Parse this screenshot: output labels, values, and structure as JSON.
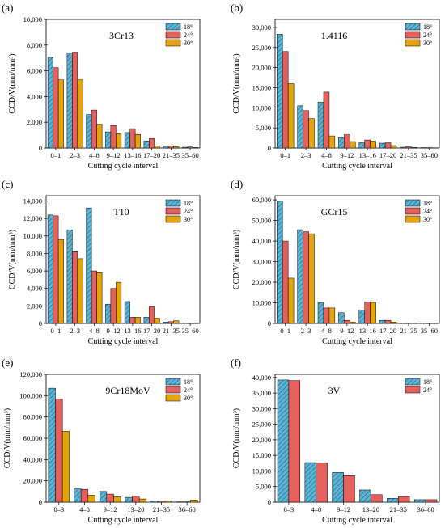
{
  "figure": {
    "colors": {
      "series_0": "#5BB4D5",
      "series_1": "#E5615D",
      "series_2": "#E5A40C"
    }
  },
  "chart_data": [
    {
      "type": "bar",
      "panel_label": "(a)",
      "material": "3Cr13",
      "xlabel": "Cutting cycle interval",
      "ylabel": "CCD/V(mm/mm³)",
      "categories": [
        "0–1",
        "2–3",
        "4–8",
        "9–12",
        "13–16",
        "17–20",
        "21–35",
        "35–60"
      ],
      "ylim": [
        0,
        10000
      ],
      "yticks": [
        0,
        2000,
        4000,
        6000,
        8000,
        10000
      ],
      "ytick_labels": [
        "0",
        "2,000",
        "4,000",
        "6,000",
        "8,000",
        "10,000"
      ],
      "legend_position": "top-right",
      "series": [
        {
          "name": "18°",
          "values": [
            7050,
            7400,
            2600,
            1250,
            1200,
            550,
            150,
            60
          ]
        },
        {
          "name": "24°",
          "values": [
            6250,
            7450,
            2950,
            1750,
            1500,
            730,
            170,
            80
          ]
        },
        {
          "name": "30°",
          "values": [
            5300,
            5300,
            1850,
            1100,
            1050,
            150,
            100,
            40
          ]
        }
      ]
    },
    {
      "type": "bar",
      "panel_label": "(b)",
      "material": "1.4116",
      "xlabel": "Cutting cycle interval",
      "ylabel": "CCD/V(mm/mm³)",
      "categories": [
        "0–1",
        "2–3",
        "4–8",
        "9–12",
        "13–16",
        "17–20",
        "21–35",
        "35–60"
      ],
      "ylim": [
        0,
        32000
      ],
      "yticks": [
        0,
        5000,
        10000,
        15000,
        20000,
        25000,
        30000
      ],
      "ytick_labels": [
        "0",
        "5,000",
        "10,000",
        "15,000",
        "20,000",
        "25,000",
        "30,000"
      ],
      "legend_position": "top-right",
      "series": [
        {
          "name": "18°",
          "values": [
            28300,
            10500,
            11400,
            2600,
            1300,
            1200,
            200,
            80
          ]
        },
        {
          "name": "24°",
          "values": [
            24000,
            9300,
            13900,
            3300,
            2000,
            1300,
            300,
            80
          ]
        },
        {
          "name": "30°",
          "values": [
            16000,
            7300,
            3000,
            1600,
            1700,
            600,
            150,
            50
          ]
        }
      ]
    },
    {
      "type": "bar",
      "panel_label": "(c)",
      "material": "T10",
      "xlabel": "Cutting cycle interval",
      "ylabel": "CCD/V(mm/mm³)",
      "categories": [
        "0–1",
        "2–3",
        "4–8",
        "9–12",
        "13–16",
        "17–20",
        "21–35",
        "35–60"
      ],
      "ylim": [
        0,
        14600
      ],
      "yticks": [
        0,
        2000,
        4000,
        6000,
        8000,
        10000,
        12000,
        14000
      ],
      "ytick_labels": [
        "0",
        "2,000",
        "4,000",
        "6,000",
        "8,000",
        "10,000",
        "12,000",
        "14,000"
      ],
      "legend_position": "top-right",
      "series": [
        {
          "name": "18°",
          "values": [
            12400,
            10700,
            13200,
            2200,
            2500,
            700,
            150,
            50
          ]
        },
        {
          "name": "24°",
          "values": [
            12300,
            8200,
            6000,
            4000,
            700,
            1900,
            200,
            40
          ]
        },
        {
          "name": "30°",
          "values": [
            9600,
            7400,
            5800,
            4700,
            700,
            600,
            300,
            30
          ]
        }
      ]
    },
    {
      "type": "bar",
      "panel_label": "(d)",
      "material": "GCr15",
      "xlabel": "Cutting cycle interval",
      "ylabel": "CCD/V(mm/mm³)",
      "categories": [
        "0–1",
        "2–3",
        "4–8",
        "9–12",
        "13–16",
        "17–20",
        "21–35",
        "35–60"
      ],
      "ylim": [
        0,
        62000
      ],
      "yticks": [
        0,
        10000,
        20000,
        30000,
        40000,
        50000,
        60000
      ],
      "ytick_labels": [
        "0",
        "10,000",
        "20,000",
        "30,000",
        "40,000",
        "50,000",
        "60,000"
      ],
      "legend_position": "top-right",
      "series": [
        {
          "name": "18°",
          "values": [
            59500,
            45500,
            10000,
            5200,
            6500,
            1500,
            300,
            100
          ]
        },
        {
          "name": "24°",
          "values": [
            40000,
            44500,
            7500,
            1500,
            10500,
            1500,
            300,
            50
          ]
        },
        {
          "name": "30°",
          "values": [
            22000,
            43500,
            7500,
            700,
            10200,
            700,
            200,
            50
          ]
        }
      ]
    },
    {
      "type": "bar",
      "panel_label": "(e)",
      "material": "9Cr18MoV",
      "xlabel": "Cutting cycle interval",
      "ylabel": "CCD/V(mm/mm³)",
      "categories": [
        "0–3",
        "4–8",
        "9–12",
        "13–20",
        "21–35",
        "36–60"
      ],
      "ylim": [
        0,
        120000
      ],
      "yticks": [
        0,
        20000,
        40000,
        60000,
        80000,
        100000,
        120000
      ],
      "ytick_labels": [
        "0",
        "20,000",
        "40,000",
        "60,000",
        "80,000",
        "100,000",
        "120,000"
      ],
      "legend_position": "top-right",
      "series": [
        {
          "name": "18°",
          "values": [
            107000,
            12500,
            10000,
            4500,
            1000,
            300
          ]
        },
        {
          "name": "24°",
          "values": [
            97000,
            12000,
            7500,
            5500,
            1000,
            300
          ]
        },
        {
          "name": "30°",
          "values": [
            66500,
            6500,
            5000,
            3000,
            1200,
            2000
          ]
        }
      ]
    },
    {
      "type": "bar",
      "panel_label": "(f)",
      "material": "3V",
      "xlabel": "Cutting cycle interval",
      "ylabel": "CCD/V(mm/mm³)",
      "categories": [
        "0–3",
        "4–8",
        "9–12",
        "13–20",
        "21–35",
        "36–60"
      ],
      "ylim": [
        0,
        41000
      ],
      "yticks": [
        0,
        5000,
        10000,
        15000,
        20000,
        25000,
        30000,
        35000,
        40000
      ],
      "ytick_labels": [
        "0",
        "5,000",
        "10,000",
        "15,000",
        "20,000",
        "25,000",
        "30,000",
        "35,000",
        "40,000"
      ],
      "legend_position": "top-right",
      "series": [
        {
          "name": "18°",
          "values": [
            39200,
            12700,
            9500,
            3900,
            1200,
            800
          ]
        },
        {
          "name": "24°",
          "values": [
            39000,
            12600,
            8500,
            2400,
            1800,
            800
          ]
        }
      ]
    }
  ]
}
